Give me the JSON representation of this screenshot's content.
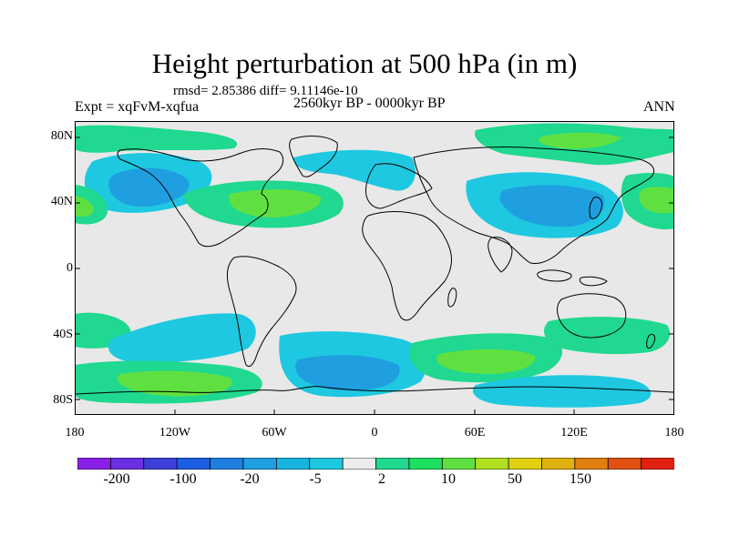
{
  "title": "Height perturbation at 500 hPa (in m)",
  "rmsd_text": "rmsd= 2.85386 diff= 9.11146e-10",
  "experiment_text": "Expt = xqFvM-xqfua",
  "period_text": "2560kyr BP - 0000kyr BP",
  "season_text": "ANN",
  "lat_labels": [
    "80N",
    "40N",
    "0",
    "40S",
    "80S"
  ],
  "lon_labels": [
    "180",
    "120W",
    "60W",
    "0",
    "60E",
    "120E",
    "180"
  ],
  "colorbar": {
    "labels": [
      "-200",
      "-100",
      "-20",
      "-5",
      "2",
      "10",
      "50",
      "150"
    ],
    "colors": [
      "#8A20E8",
      "#6A2FE0",
      "#3D3FD8",
      "#1C5CE0",
      "#1F7FE0",
      "#1E9FE0",
      "#18B4E0",
      "#1EC8E0",
      "#ECECEC",
      "#20D890",
      "#1EE060",
      "#60E040",
      "#B0E020",
      "#E0D010",
      "#E0B010",
      "#E08010",
      "#E05010",
      "#E02010"
    ]
  },
  "colors": {
    "background_field": "#E8E8E8",
    "land_outline": "#000000",
    "negative_strong": "#1F9FE0",
    "negative_weak": "#1EC8E0",
    "positive_weak": "#20D890",
    "positive_strong": "#60E040"
  }
}
